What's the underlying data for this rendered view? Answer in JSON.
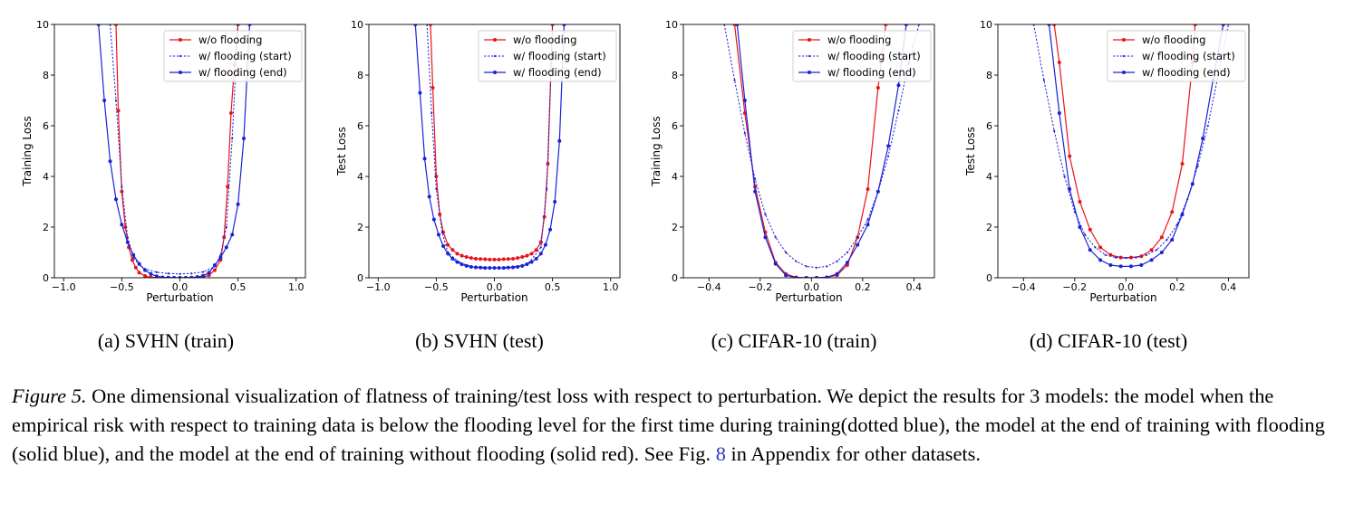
{
  "colors": {
    "red": "#e8141a",
    "blue": "#1a22d8",
    "dotted_blue": "#1a22d8"
  },
  "subcaptions": [
    "(a) SVHN (train)",
    "(b) SVHN (test)",
    "(c) CIFAR-10 (train)",
    "(d) CIFAR-10 (test)"
  ],
  "caption": {
    "figure_label": "Figure 5.",
    "text_before_ref": " One dimensional visualization of flatness of training/test loss with respect to perturbation. We depict the results for 3 models: the model when the empirical risk with respect to training data is below the flooding level for the first time during training(dotted blue), the model at the end of training with flooding (solid blue), and the model at the end of training without flooding (solid red). See Fig. ",
    "ref": "8",
    "text_after_ref": " in Appendix for other datasets."
  },
  "chart_data": [
    {
      "type": "line",
      "xlabel": "Perturbation",
      "ylabel": "Training Loss",
      "xlim": [
        -1.08,
        1.08
      ],
      "ylim": [
        0,
        10
      ],
      "xticks": [
        -1.0,
        -0.5,
        0.0,
        0.5,
        1.0
      ],
      "xtick_labels": [
        "−1.0",
        "−0.5",
        "0.0",
        "0.5",
        "1.0"
      ],
      "yticks": [
        0,
        2,
        4,
        6,
        8,
        10
      ],
      "ytick_labels": [
        "0",
        "2",
        "4",
        "6",
        "8",
        "10"
      ],
      "legend_position": "top-right",
      "series": [
        {
          "name": "w/o flooding",
          "style": "red-solid",
          "x": [
            -0.55,
            -0.53,
            -0.5,
            -0.47,
            -0.44,
            -0.41,
            -0.38,
            -0.35,
            -0.3,
            -0.25,
            -0.2,
            -0.15,
            -0.1,
            -0.05,
            0.0,
            0.05,
            0.1,
            0.15,
            0.2,
            0.25,
            0.3,
            0.35,
            0.38,
            0.41,
            0.44,
            0.47,
            0.5
          ],
          "y": [
            10,
            6.6,
            3.4,
            2.0,
            1.2,
            0.7,
            0.4,
            0.2,
            0.07,
            0.02,
            0.01,
            0.0,
            0.0,
            0.0,
            0.0,
            0.0,
            0.0,
            0.01,
            0.03,
            0.1,
            0.3,
            0.7,
            1.6,
            3.6,
            6.5,
            8.4,
            10
          ]
        },
        {
          "name": "w/ flooding (start)",
          "style": "blue-dotted",
          "x": [
            -0.6,
            -0.55,
            -0.5,
            -0.45,
            -0.4,
            -0.35,
            -0.3,
            -0.2,
            -0.1,
            0.0,
            0.1,
            0.2,
            0.3,
            0.35,
            0.4,
            0.45,
            0.5
          ],
          "y": [
            10,
            7.0,
            3.6,
            1.6,
            0.8,
            0.5,
            0.35,
            0.22,
            0.17,
            0.15,
            0.17,
            0.23,
            0.45,
            0.9,
            2.0,
            5.5,
            10
          ]
        },
        {
          "name": "w/ flooding (end)",
          "style": "blue-solid",
          "x": [
            -0.7,
            -0.65,
            -0.6,
            -0.55,
            -0.5,
            -0.45,
            -0.4,
            -0.35,
            -0.3,
            -0.25,
            -0.2,
            -0.15,
            -0.1,
            -0.05,
            0.0,
            0.05,
            0.1,
            0.15,
            0.2,
            0.25,
            0.3,
            0.35,
            0.4,
            0.45,
            0.5,
            0.55,
            0.6
          ],
          "y": [
            10,
            7.0,
            4.6,
            3.1,
            2.1,
            1.4,
            0.9,
            0.55,
            0.3,
            0.15,
            0.06,
            0.02,
            0.01,
            0.0,
            0.0,
            0.0,
            0.01,
            0.03,
            0.08,
            0.2,
            0.5,
            0.8,
            1.2,
            1.7,
            2.9,
            5.5,
            10
          ]
        }
      ]
    },
    {
      "type": "line",
      "xlabel": "Perturbation",
      "ylabel": "Test Loss",
      "xlim": [
        -1.08,
        1.08
      ],
      "ylim": [
        0,
        10
      ],
      "xticks": [
        -1.0,
        -0.5,
        0.0,
        0.5,
        1.0
      ],
      "xtick_labels": [
        "−1.0",
        "−0.5",
        "0.0",
        "0.5",
        "1.0"
      ],
      "yticks": [
        0,
        2,
        4,
        6,
        8,
        10
      ],
      "ytick_labels": [
        "0",
        "2",
        "4",
        "6",
        "8",
        "10"
      ],
      "legend_position": "top-right",
      "series": [
        {
          "name": "w/o flooding",
          "style": "red-solid",
          "x": [
            -0.55,
            -0.53,
            -0.5,
            -0.47,
            -0.44,
            -0.4,
            -0.36,
            -0.32,
            -0.28,
            -0.24,
            -0.2,
            -0.16,
            -0.12,
            -0.08,
            -0.04,
            0.0,
            0.04,
            0.08,
            0.12,
            0.16,
            0.2,
            0.24,
            0.28,
            0.32,
            0.36,
            0.4,
            0.43,
            0.46,
            0.5
          ],
          "y": [
            10,
            7.5,
            4.0,
            2.5,
            1.8,
            1.3,
            1.1,
            0.95,
            0.87,
            0.82,
            0.78,
            0.75,
            0.74,
            0.73,
            0.72,
            0.72,
            0.72,
            0.73,
            0.74,
            0.75,
            0.78,
            0.82,
            0.87,
            0.95,
            1.1,
            1.4,
            2.4,
            4.5,
            10
          ]
        },
        {
          "name": "w/ flooding (start)",
          "style": "blue-dotted",
          "x": [
            -0.58,
            -0.54,
            -0.5,
            -0.45,
            -0.4,
            -0.3,
            -0.2,
            -0.1,
            0.0,
            0.1,
            0.2,
            0.3,
            0.4,
            0.45,
            0.5
          ],
          "y": [
            10,
            6.5,
            3.5,
            1.8,
            1.0,
            0.6,
            0.45,
            0.4,
            0.38,
            0.4,
            0.45,
            0.6,
            1.2,
            3.5,
            10
          ]
        },
        {
          "name": "w/ flooding (end)",
          "style": "blue-solid",
          "x": [
            -0.68,
            -0.64,
            -0.6,
            -0.56,
            -0.52,
            -0.48,
            -0.44,
            -0.4,
            -0.36,
            -0.32,
            -0.28,
            -0.24,
            -0.2,
            -0.16,
            -0.12,
            -0.08,
            -0.04,
            0.0,
            0.04,
            0.08,
            0.12,
            0.16,
            0.2,
            0.24,
            0.28,
            0.32,
            0.36,
            0.4,
            0.44,
            0.48,
            0.52,
            0.56,
            0.6
          ],
          "y": [
            10,
            7.3,
            4.7,
            3.2,
            2.3,
            1.7,
            1.25,
            0.95,
            0.75,
            0.62,
            0.53,
            0.47,
            0.43,
            0.41,
            0.4,
            0.39,
            0.39,
            0.39,
            0.39,
            0.39,
            0.4,
            0.41,
            0.43,
            0.47,
            0.53,
            0.62,
            0.75,
            0.95,
            1.3,
            1.9,
            3.0,
            5.4,
            10
          ]
        }
      ]
    },
    {
      "type": "line",
      "xlabel": "Perturbation",
      "ylabel": "Training Loss",
      "xlim": [
        -0.5,
        0.48
      ],
      "ylim": [
        0,
        10
      ],
      "xticks": [
        -0.4,
        -0.2,
        0.0,
        0.2,
        0.4
      ],
      "xtick_labels": [
        "−0.4",
        "−0.2",
        "0.0",
        "0.2",
        "0.4"
      ],
      "yticks": [
        0,
        2,
        4,
        6,
        8,
        10
      ],
      "ytick_labels": [
        "0",
        "2",
        "4",
        "6",
        "8",
        "10"
      ],
      "legend_position": "top-right",
      "series": [
        {
          "name": "w/o flooding",
          "style": "red-solid",
          "x": [
            -0.3,
            -0.26,
            -0.22,
            -0.18,
            -0.14,
            -0.1,
            -0.06,
            -0.02,
            0.02,
            0.06,
            0.1,
            0.14,
            0.18,
            0.22,
            0.26,
            0.29
          ],
          "y": [
            10,
            6.5,
            3.6,
            1.8,
            0.6,
            0.15,
            0.02,
            0.0,
            0.0,
            0.02,
            0.1,
            0.5,
            1.6,
            3.5,
            7.5,
            10
          ]
        },
        {
          "name": "w/ flooding (start)",
          "style": "blue-dotted",
          "x": [
            -0.34,
            -0.3,
            -0.26,
            -0.22,
            -0.18,
            -0.14,
            -0.1,
            -0.06,
            -0.02,
            0.02,
            0.06,
            0.1,
            0.14,
            0.18,
            0.22,
            0.26,
            0.3,
            0.34,
            0.38,
            0.42
          ],
          "y": [
            10,
            7.8,
            5.7,
            3.9,
            2.5,
            1.6,
            1.0,
            0.65,
            0.45,
            0.4,
            0.45,
            0.65,
            1.0,
            1.6,
            2.3,
            3.4,
            4.8,
            6.6,
            8.5,
            10
          ]
        },
        {
          "name": "w/ flooding (end)",
          "style": "blue-solid",
          "x": [
            -0.29,
            -0.26,
            -0.22,
            -0.18,
            -0.14,
            -0.1,
            -0.06,
            -0.02,
            0.02,
            0.06,
            0.1,
            0.14,
            0.18,
            0.22,
            0.26,
            0.3,
            0.34,
            0.37
          ],
          "y": [
            10,
            7.0,
            3.4,
            1.6,
            0.55,
            0.1,
            0.0,
            0.0,
            0.0,
            0.02,
            0.15,
            0.6,
            1.3,
            2.1,
            3.4,
            5.2,
            7.6,
            10
          ]
        }
      ]
    },
    {
      "type": "line",
      "xlabel": "Perturbation",
      "ylabel": "Test Loss",
      "xlim": [
        -0.5,
        0.48
      ],
      "ylim": [
        0,
        10
      ],
      "xticks": [
        -0.4,
        -0.2,
        0.0,
        0.2,
        0.4
      ],
      "xtick_labels": [
        "−0.4",
        "−0.2",
        "0.0",
        "0.2",
        "0.4"
      ],
      "yticks": [
        0,
        2,
        4,
        6,
        8,
        10
      ],
      "ytick_labels": [
        "0",
        "2",
        "4",
        "6",
        "8",
        "10"
      ],
      "legend_position": "top-right",
      "series": [
        {
          "name": "w/o flooding",
          "style": "red-solid",
          "x": [
            -0.28,
            -0.26,
            -0.22,
            -0.18,
            -0.14,
            -0.1,
            -0.06,
            -0.02,
            0.02,
            0.06,
            0.1,
            0.14,
            0.18,
            0.22,
            0.26,
            0.27
          ],
          "y": [
            10,
            8.5,
            4.8,
            3.0,
            1.9,
            1.2,
            0.9,
            0.8,
            0.8,
            0.85,
            1.1,
            1.6,
            2.6,
            4.5,
            8.5,
            10
          ]
        },
        {
          "name": "w/ flooding (start)",
          "style": "blue-dotted",
          "x": [
            -0.36,
            -0.32,
            -0.28,
            -0.24,
            -0.2,
            -0.16,
            -0.12,
            -0.08,
            -0.04,
            0.0,
            0.04,
            0.08,
            0.12,
            0.16,
            0.2,
            0.24,
            0.28,
            0.32,
            0.36,
            0.4
          ],
          "y": [
            10,
            7.8,
            5.8,
            4.0,
            2.6,
            1.7,
            1.2,
            0.9,
            0.8,
            0.78,
            0.8,
            0.9,
            1.1,
            1.5,
            2.1,
            3.1,
            4.4,
            6.0,
            8.0,
            10
          ]
        },
        {
          "name": "w/ flooding (end)",
          "style": "blue-solid",
          "x": [
            -0.3,
            -0.26,
            -0.22,
            -0.18,
            -0.14,
            -0.1,
            -0.06,
            -0.02,
            0.02,
            0.06,
            0.1,
            0.14,
            0.18,
            0.22,
            0.26,
            0.3,
            0.34,
            0.38
          ],
          "y": [
            10,
            6.5,
            3.5,
            2.0,
            1.1,
            0.7,
            0.5,
            0.45,
            0.45,
            0.5,
            0.7,
            1.0,
            1.5,
            2.5,
            3.7,
            5.5,
            7.8,
            10
          ]
        }
      ]
    }
  ]
}
